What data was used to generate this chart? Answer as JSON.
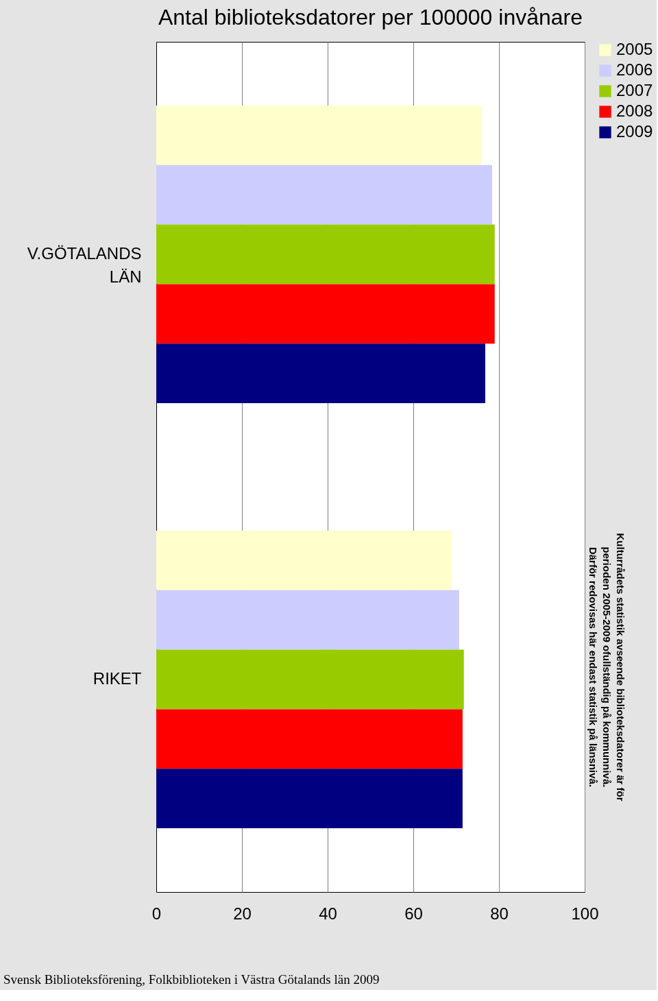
{
  "chart_data": {
    "type": "bar",
    "orientation": "horizontal",
    "title": "Antal biblioteksdatorer per 100000 invånare",
    "categories": [
      "V.GÖTALANDS LÄN",
      "RIKET"
    ],
    "series": [
      {
        "name": "2005",
        "color": "#ffffcc",
        "values": [
          76,
          69
        ]
      },
      {
        "name": "2006",
        "color": "#ccccff",
        "values": [
          78.4,
          70.7
        ]
      },
      {
        "name": "2007",
        "color": "#99cc00",
        "values": [
          79,
          71.8
        ]
      },
      {
        "name": "2008",
        "color": "#ff0000",
        "values": [
          79,
          71.5
        ]
      },
      {
        "name": "2009",
        "color": "#000080",
        "values": [
          76.8,
          71.5
        ]
      }
    ],
    "xlim": [
      0,
      100
    ],
    "xticks": [
      0,
      20,
      40,
      60,
      80,
      100
    ],
    "grid": "x",
    "legend": "top right",
    "annotations": [
      "Kulturrådets statistik avseende biblioteksdatorer är för\nperioden 2005-2009 ofullständig på kommunnivå.\nDärför redovisas här endast statistik på länsnivå.",
      "Svensk Biblioteksförening, Folkbiblioteken i Västra Götalands län 2009"
    ]
  }
}
